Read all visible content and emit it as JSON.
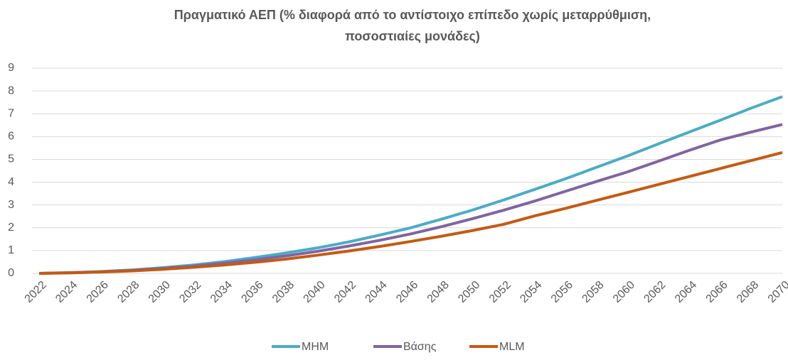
{
  "chart_data": {
    "type": "line",
    "title": [
      "Πραγματικό ΑΕΠ (% διαφορά από το αντίστοιχο επίπεδο χωρίς μεταρρύθμιση,",
      "ποσοστιαίες μονάδες)"
    ],
    "x": [
      2022,
      2024,
      2026,
      2028,
      2030,
      2032,
      2034,
      2036,
      2038,
      2040,
      2042,
      2044,
      2046,
      2048,
      2050,
      2052,
      2054,
      2056,
      2058,
      2060,
      2062,
      2064,
      2066,
      2068,
      2070
    ],
    "series": [
      {
        "name": "MHM",
        "color": "#4bacc6",
        "values": [
          0,
          0.03,
          0.08,
          0.15,
          0.25,
          0.37,
          0.52,
          0.7,
          0.9,
          1.12,
          1.38,
          1.68,
          2.0,
          2.38,
          2.78,
          3.22,
          3.68,
          4.15,
          4.65,
          5.15,
          5.68,
          6.2,
          6.72,
          7.25,
          7.75
        ]
      },
      {
        "name": "Βάσης",
        "color": "#8064a2",
        "values": [
          0,
          0.03,
          0.07,
          0.13,
          0.22,
          0.32,
          0.45,
          0.6,
          0.77,
          0.97,
          1.2,
          1.45,
          1.73,
          2.05,
          2.4,
          2.77,
          3.17,
          3.6,
          4.03,
          4.45,
          4.92,
          5.4,
          5.85,
          6.2,
          6.53
        ]
      },
      {
        "name": "MLM",
        "color": "#c55a11",
        "values": [
          0,
          0.02,
          0.06,
          0.11,
          0.18,
          0.27,
          0.37,
          0.49,
          0.63,
          0.8,
          0.98,
          1.18,
          1.4,
          1.63,
          1.88,
          2.15,
          2.52,
          2.85,
          3.2,
          3.55,
          3.9,
          4.25,
          4.6,
          4.95,
          5.3
        ]
      }
    ],
    "xlim": [
      2022,
      2070
    ],
    "xticks": [
      2022,
      2024,
      2026,
      2028,
      2030,
      2032,
      2034,
      2036,
      2038,
      2040,
      2042,
      2044,
      2046,
      2048,
      2050,
      2052,
      2054,
      2056,
      2058,
      2060,
      2062,
      2064,
      2066,
      2068,
      2070
    ],
    "ylim": [
      0,
      9
    ],
    "yticks": [
      0,
      1,
      2,
      3,
      4,
      5,
      6,
      7,
      8,
      9
    ],
    "grid": true,
    "legend": "bottom"
  }
}
